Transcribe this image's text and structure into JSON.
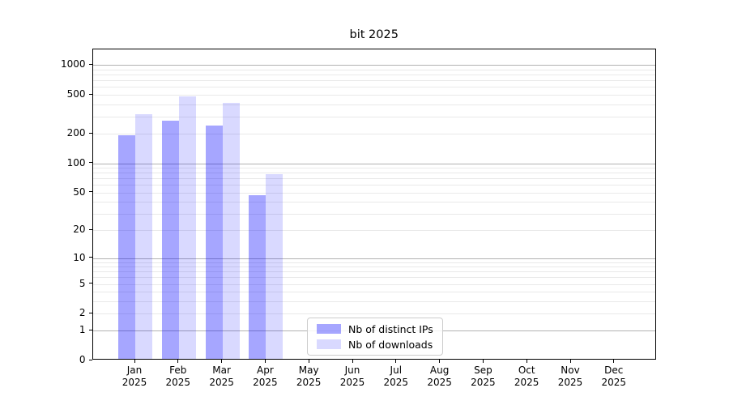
{
  "chart_data": {
    "type": "bar",
    "title": "bit 2025",
    "categories": [
      "Jan 2025",
      "Feb 2025",
      "Mar 2025",
      "Apr 2025",
      "May 2025",
      "Jun 2025",
      "Jul 2025",
      "Aug 2025",
      "Sep 2025",
      "Oct 2025",
      "Nov 2025",
      "Dec 2025"
    ],
    "series": [
      {
        "name": "Nb of distinct IPs",
        "color_on_white": "#a6a6ff",
        "fill": "rgba(0,0,255,0.35)",
        "values": [
          185,
          263,
          235,
          45,
          0,
          0,
          0,
          0,
          0,
          0,
          0,
          0
        ]
      },
      {
        "name": "Nb of downloads",
        "color_on_white": "#d9d9ff",
        "fill": "rgba(0,0,255,0.15)",
        "values": [
          305,
          463,
          400,
          74,
          0,
          0,
          0,
          0,
          0,
          0,
          0,
          0
        ]
      }
    ],
    "yscale": "log1p",
    "ylim": [
      0,
      1450
    ],
    "yticks": [
      0,
      1,
      2,
      5,
      10,
      20,
      50,
      100,
      200,
      500,
      1000
    ],
    "xlabel": "",
    "ylabel": "",
    "grid": {
      "major_values": [
        1,
        10,
        100,
        1000
      ],
      "major_color": "#b2b2b2",
      "minor_color": "#e9e9e9"
    },
    "legend": {
      "position": "lower-center",
      "border_color": "#cccccc"
    }
  }
}
